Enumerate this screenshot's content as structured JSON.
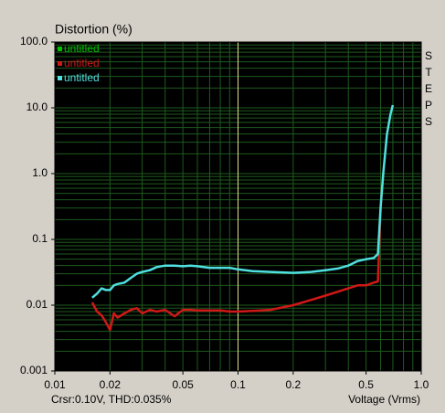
{
  "chart_data": {
    "type": "line",
    "title": "Distortion (%)",
    "xlabel": "Voltage (Vrms)",
    "side_label": "STEPS",
    "status": "Crsr:0.10V, THD:0.035%",
    "log_x": true,
    "log_y": true,
    "grid": true,
    "legend": "top-left",
    "cursor_x": 0.1,
    "cursor_color": "#e0e090",
    "x": [
      0.016,
      0.017,
      0.018,
      0.019,
      0.02,
      0.021,
      0.022,
      0.024,
      0.026,
      0.028,
      0.03,
      0.033,
      0.036,
      0.04,
      0.045,
      0.05,
      0.055,
      0.06,
      0.07,
      0.08,
      0.09,
      0.1,
      0.12,
      0.15,
      0.2,
      0.25,
      0.3,
      0.35,
      0.4,
      0.45,
      0.5,
      0.55,
      0.58,
      0.6,
      0.62,
      0.65,
      0.68,
      0.7
    ],
    "series": [
      {
        "name": "untitled",
        "color": "#00c000",
        "values": [
          null,
          null,
          null,
          null,
          null,
          null,
          null,
          null,
          null,
          null,
          null,
          null,
          null,
          null,
          null,
          null,
          null,
          null,
          null,
          null,
          null,
          null,
          null,
          null,
          null,
          null,
          null,
          null,
          null,
          null,
          null,
          null,
          null,
          null,
          null,
          null,
          null,
          null
        ]
      },
      {
        "name": "untitled",
        "color": "#d01818",
        "values": [
          0.011,
          0.008,
          0.007,
          0.0055,
          0.0042,
          0.0075,
          0.0065,
          0.0075,
          0.0085,
          0.009,
          0.0075,
          0.0085,
          0.008,
          0.0085,
          0.0068,
          0.0085,
          0.0085,
          0.0083,
          0.0083,
          0.0083,
          0.008,
          0.008,
          0.0082,
          0.0085,
          0.01,
          0.012,
          0.014,
          0.016,
          0.018,
          0.02,
          0.02,
          0.022,
          0.023,
          0.3,
          1.0,
          null,
          null,
          null
        ]
      },
      {
        "name": "untitled",
        "color": "#50e0e0",
        "values": [
          0.013,
          0.015,
          0.018,
          0.017,
          0.017,
          0.02,
          0.021,
          0.022,
          0.026,
          0.03,
          0.032,
          0.034,
          0.038,
          0.04,
          0.04,
          0.039,
          0.04,
          0.039,
          0.037,
          0.037,
          0.037,
          0.035,
          0.033,
          0.032,
          0.031,
          0.032,
          0.034,
          0.036,
          0.04,
          0.047,
          0.05,
          0.052,
          0.06,
          0.3,
          1.0,
          4,
          8,
          11
        ]
      }
    ],
    "xlim": [
      0.01,
      1
    ],
    "ylim": [
      0.001,
      100
    ],
    "xticks": [
      0.01,
      0.02,
      0.05,
      0.1,
      0.2,
      0.5,
      {
        "value": 1,
        "label": "1.0"
      }
    ],
    "yticks": [
      0.001,
      0.01,
      0.1,
      {
        "value": 1,
        "label": "1.0"
      },
      {
        "value": 10,
        "label": "10.0"
      },
      {
        "value": 100,
        "label": "100.0"
      }
    ],
    "xgrid": [
      0.01,
      0.02,
      0.03,
      0.04,
      0.05,
      0.06,
      0.07,
      0.08,
      0.09,
      0.1,
      0.2,
      0.3,
      0.4,
      0.5,
      0.6,
      0.7,
      0.8,
      0.9,
      1
    ],
    "ygrid": [
      0.001,
      0.002,
      0.003,
      0.004,
      0.005,
      0.006,
      0.007,
      0.008,
      0.009,
      0.01,
      0.02,
      0.03,
      0.04,
      0.05,
      0.06,
      0.07,
      0.08,
      0.09,
      0.1,
      0.2,
      0.3,
      0.4,
      0.5,
      0.6,
      0.7,
      0.8,
      0.9,
      1,
      2,
      3,
      4,
      5,
      6,
      7,
      8,
      9,
      10,
      20,
      30,
      40,
      50,
      60,
      70,
      80,
      90,
      100
    ]
  }
}
